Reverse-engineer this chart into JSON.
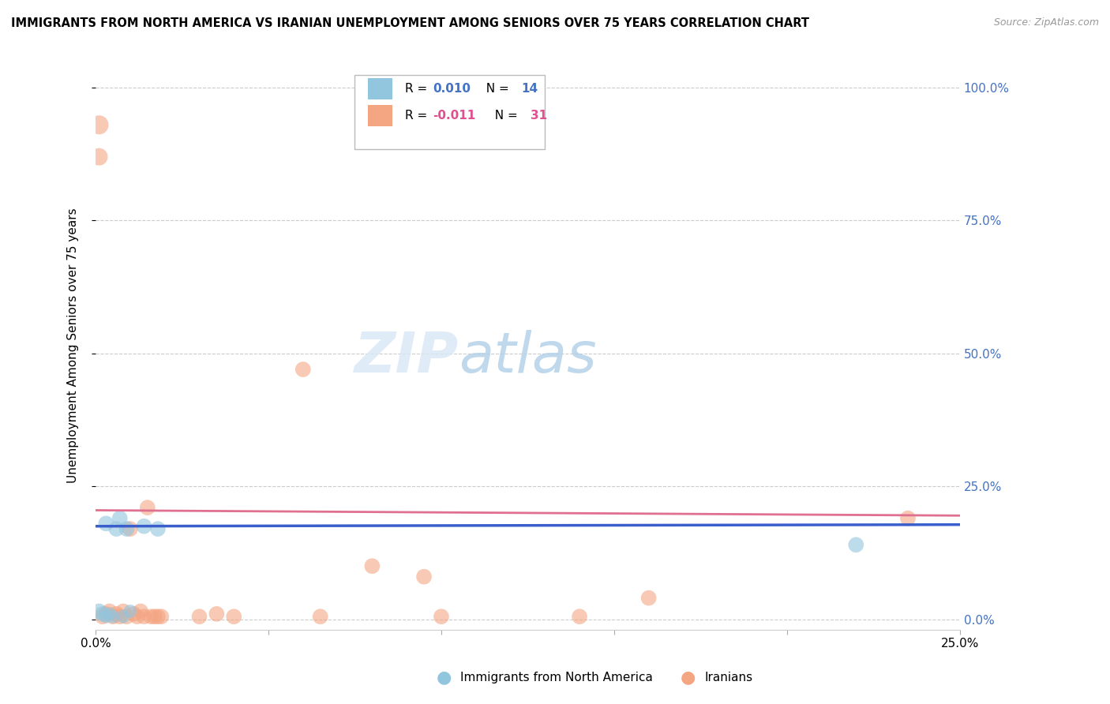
{
  "title": "IMMIGRANTS FROM NORTH AMERICA VS IRANIAN UNEMPLOYMENT AMONG SENIORS OVER 75 YEARS CORRELATION CHART",
  "source": "Source: ZipAtlas.com",
  "ylabel": "Unemployment Among Seniors over 75 years",
  "ytick_values": [
    0,
    0.25,
    0.5,
    0.75,
    1.0
  ],
  "xlim": [
    0,
    0.25
  ],
  "ylim": [
    -0.02,
    1.05
  ],
  "legend_entries": [
    {
      "label_R": "0.010",
      "label_N": "14",
      "color": "#92c5de"
    },
    {
      "label_R": "-0.011",
      "label_N": "31",
      "color": "#f4a582"
    }
  ],
  "blue_scatter": {
    "color": "#92c5de",
    "x": [
      0.001,
      0.002,
      0.003,
      0.003,
      0.004,
      0.005,
      0.006,
      0.007,
      0.008,
      0.009,
      0.01,
      0.014,
      0.018,
      0.22
    ],
    "y": [
      0.015,
      0.01,
      0.005,
      0.18,
      0.01,
      0.005,
      0.17,
      0.19,
      0.005,
      0.17,
      0.015,
      0.175,
      0.17,
      0.14
    ],
    "sizes": [
      200,
      200,
      150,
      200,
      150,
      150,
      200,
      200,
      150,
      200,
      150,
      200,
      200,
      200
    ]
  },
  "pink_scatter": {
    "color": "#f4a582",
    "x": [
      0.001,
      0.001,
      0.002,
      0.003,
      0.004,
      0.005,
      0.006,
      0.007,
      0.008,
      0.009,
      0.01,
      0.011,
      0.012,
      0.013,
      0.014,
      0.015,
      0.016,
      0.017,
      0.018,
      0.019,
      0.03,
      0.035,
      0.04,
      0.06,
      0.065,
      0.08,
      0.095,
      0.1,
      0.14,
      0.16,
      0.235
    ],
    "y": [
      0.93,
      0.87,
      0.005,
      0.01,
      0.015,
      0.005,
      0.01,
      0.005,
      0.015,
      0.005,
      0.17,
      0.01,
      0.005,
      0.015,
      0.005,
      0.21,
      0.005,
      0.005,
      0.005,
      0.005,
      0.005,
      0.01,
      0.005,
      0.47,
      0.005,
      0.1,
      0.08,
      0.005,
      0.005,
      0.04,
      0.19
    ],
    "sizes": [
      300,
      250,
      200,
      200,
      200,
      200,
      200,
      200,
      200,
      200,
      200,
      200,
      200,
      200,
      200,
      200,
      200,
      200,
      200,
      200,
      200,
      200,
      200,
      200,
      200,
      200,
      200,
      200,
      200,
      200,
      200
    ]
  },
  "blue_line_y0": 0.175,
  "blue_line_y1": 0.178,
  "pink_line_y0": 0.205,
  "pink_line_y1": 0.195,
  "blue_line_color": "#3a5fcd",
  "pink_line_color": "#e07090",
  "xtick_positions": [
    0.0,
    0.05,
    0.1,
    0.15,
    0.2,
    0.25
  ],
  "xtick_labels": [
    "0.0%",
    "",
    "",
    "",
    "",
    "25.0%"
  ]
}
